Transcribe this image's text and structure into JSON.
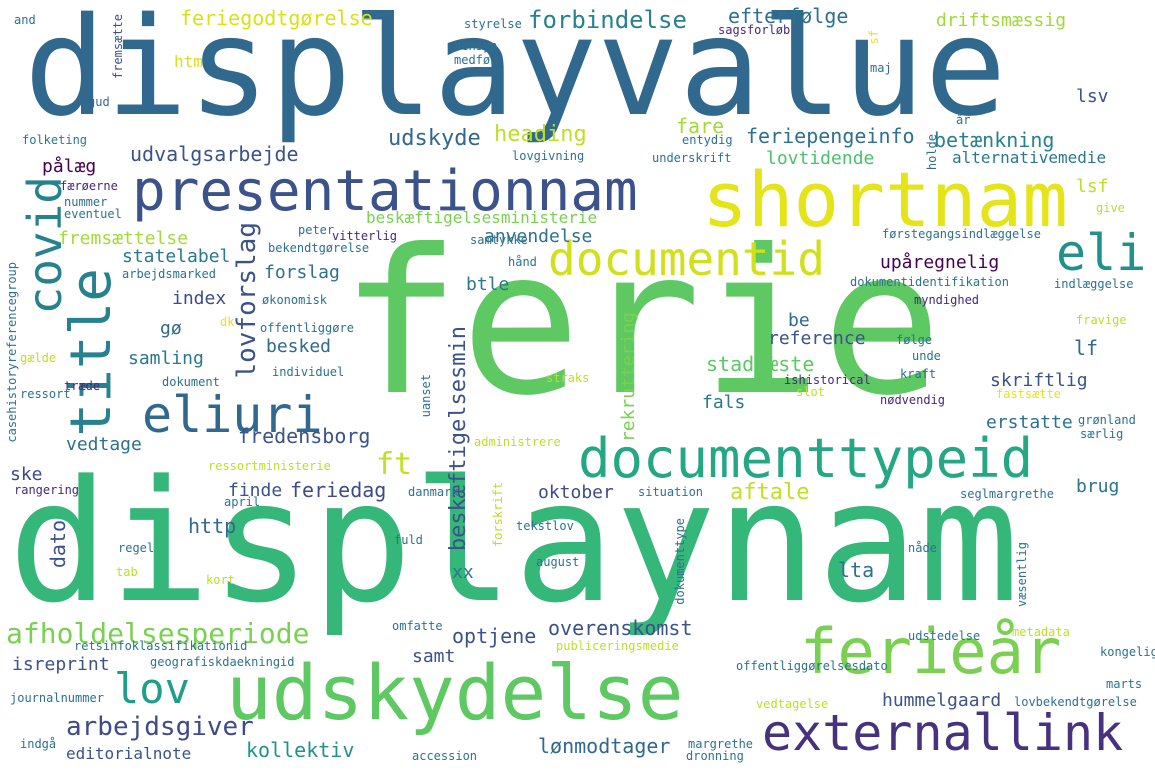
{
  "word_cloud": {
    "words": [
      {
        "text": "ferie",
        "color": "#5ec962"
      },
      {
        "text": "displaynam",
        "color": "#35b779"
      },
      {
        "text": "displayvalue",
        "color": "#31688e"
      },
      {
        "text": "presentationnam",
        "color": "#3b528b"
      },
      {
        "text": "shortnam",
        "color": "#e5e419"
      },
      {
        "text": "documentid",
        "color": "#d0e11c"
      },
      {
        "text": "documenttypeid",
        "color": "#26a784"
      },
      {
        "text": "udskydelse",
        "color": "#5ec962"
      },
      {
        "text": "externallink",
        "color": "#46327e"
      },
      {
        "text": "ferieår",
        "color": "#7ad151"
      },
      {
        "text": "eliuri",
        "color": "#31688e"
      },
      {
        "text": "title",
        "color": "#26828e"
      },
      {
        "text": "covid",
        "color": "#26828e"
      },
      {
        "text": "eli",
        "color": "#21918c"
      },
      {
        "text": "lov",
        "color": "#1f9e89"
      },
      {
        "text": "afholdelsesperiode",
        "color": "#7ad151"
      },
      {
        "text": "arbejdsgiver",
        "color": "#3e4a89"
      },
      {
        "text": "ft",
        "color": "#c2df23"
      },
      {
        "text": "lovforslag",
        "color": "#3b528b"
      },
      {
        "text": "forbindelse",
        "color": "#26828e"
      },
      {
        "text": "feriegodtgørelse",
        "color": "#d8e219"
      },
      {
        "text": "efterfølge",
        "color": "#2c728e"
      },
      {
        "text": "driftsmæssig",
        "color": "#a0da39"
      },
      {
        "text": "udvalgsarbejde",
        "color": "#3b528b"
      },
      {
        "text": "udskyde",
        "color": "#31688e"
      },
      {
        "text": "heading",
        "color": "#bddf26"
      },
      {
        "text": "fare",
        "color": "#a2da37"
      },
      {
        "text": "feriepengeinfo",
        "color": "#2c728e"
      },
      {
        "text": "betænkning",
        "color": "#26828e"
      },
      {
        "text": "lovtidende",
        "color": "#4ac16d"
      },
      {
        "text": "alternativemedie",
        "color": "#2a788e"
      },
      {
        "text": "beskæftigelsesministerie",
        "color": "#7ad151"
      },
      {
        "text": "fremsættelse",
        "color": "#a5db36"
      },
      {
        "text": "statelabel",
        "color": "#2a788e"
      },
      {
        "text": "anvendelse",
        "color": "#2c728e"
      },
      {
        "text": "forslag",
        "color": "#2c728e"
      },
      {
        "text": "upåregnelig",
        "color": "#440154"
      },
      {
        "text": "index",
        "color": "#3e4a89"
      },
      {
        "text": "btle",
        "color": "#2a788e"
      },
      {
        "text": "gø",
        "color": "#31688e"
      },
      {
        "text": "reference",
        "color": "#3b528b"
      },
      {
        "text": "samling",
        "color": "#2a788e"
      },
      {
        "text": "be",
        "color": "#31688e"
      },
      {
        "text": "besked",
        "color": "#31688e"
      },
      {
        "text": "stadfæste",
        "color": "#5ec962"
      },
      {
        "text": "lf",
        "color": "#31688e"
      },
      {
        "text": "skriftlig",
        "color": "#3b528b"
      },
      {
        "text": "fredensborg",
        "color": "#3b528b"
      },
      {
        "text": "vedtage",
        "color": "#2c728e"
      },
      {
        "text": "fals",
        "color": "#2a788e"
      },
      {
        "text": "erstatte",
        "color": "#2c728e"
      },
      {
        "text": "feriedag",
        "color": "#3e4a89"
      },
      {
        "text": "finde",
        "color": "#3b528b"
      },
      {
        "text": "ske",
        "color": "#3e4a89"
      },
      {
        "text": "aftale",
        "color": "#c2df23"
      },
      {
        "text": "oktober",
        "color": "#3e4a89"
      },
      {
        "text": "brug",
        "color": "#2c728e"
      },
      {
        "text": "http",
        "color": "#31688e"
      },
      {
        "text": "dato",
        "color": "#3b528b"
      },
      {
        "text": "xx",
        "color": "#2a788e"
      },
      {
        "text": "lta",
        "color": "#2c728e"
      },
      {
        "text": "overenskomst",
        "color": "#3b528b"
      },
      {
        "text": "optjene",
        "color": "#3b528b"
      },
      {
        "text": "samt",
        "color": "#3b528b"
      },
      {
        "text": "isreprint",
        "color": "#3b528b"
      },
      {
        "text": "editorialnote",
        "color": "#3b528b"
      },
      {
        "text": "kollektiv",
        "color": "#21918c"
      },
      {
        "text": "lønmodtager",
        "color": "#31688e"
      },
      {
        "text": "hummelgaard",
        "color": "#3b528b"
      },
      {
        "text": "beskæftigelsesmin",
        "color": "#3b528b"
      },
      {
        "text": "rekruttering",
        "color": "#7ad151"
      },
      {
        "text": "htm",
        "color": "#d8e219"
      },
      {
        "text": "lsv",
        "color": "#3b528b"
      },
      {
        "text": "lsf",
        "color": "#bddf26"
      },
      {
        "text": "pålæg",
        "color": "#440154"
      },
      {
        "text": "and",
        "color": "#2c728e"
      },
      {
        "text": "fremsætte",
        "color": "#3b528b"
      },
      {
        "text": "gud",
        "color": "#31688e"
      },
      {
        "text": "folketing",
        "color": "#2a788e"
      },
      {
        "text": "færøerne",
        "color": "#482878"
      },
      {
        "text": "nummer",
        "color": "#2c728e"
      },
      {
        "text": "eventuel",
        "color": "#2c728e"
      },
      {
        "text": "styrelse",
        "color": "#2c728e"
      },
      {
        "text": "hensyn",
        "color": "#2c728e"
      },
      {
        "text": "medfør",
        "color": "#2c728e"
      },
      {
        "text": "sagsforløb",
        "color": "#482878"
      },
      {
        "text": "maj",
        "color": "#2c728e"
      },
      {
        "text": "sf",
        "color": "#e5e419"
      },
      {
        "text": "år",
        "color": "#2c728e"
      },
      {
        "text": "entydig",
        "color": "#2c728e"
      },
      {
        "text": "underskrift",
        "color": "#2c728e"
      },
      {
        "text": "lovgivning",
        "color": "#2c728e"
      },
      {
        "text": "holde",
        "color": "#2c728e"
      },
      {
        "text": "give",
        "color": "#bddf26"
      },
      {
        "text": "peter",
        "color": "#2c728e"
      },
      {
        "text": "vitterlig",
        "color": "#482878"
      },
      {
        "text": "bekendtgørelse",
        "color": "#2c728e"
      },
      {
        "text": "samtykke",
        "color": "#2c728e"
      },
      {
        "text": "førstegangsindlæggelse",
        "color": "#2c728e"
      },
      {
        "text": "casehistoryreferencegroup",
        "color": "#2c728e"
      },
      {
        "text": "arbejdsmarked",
        "color": "#2c728e"
      },
      {
        "text": "hånd",
        "color": "#2c728e"
      },
      {
        "text": "dokumentidentifikation",
        "color": "#2c728e"
      },
      {
        "text": "indlæggelse",
        "color": "#2c728e"
      },
      {
        "text": "økonomisk",
        "color": "#2c728e"
      },
      {
        "text": "myndighed",
        "color": "#482878"
      },
      {
        "text": "dk",
        "color": "#e5e419"
      },
      {
        "text": "offentliggøre",
        "color": "#2c728e"
      },
      {
        "text": "fravige",
        "color": "#bddf26"
      },
      {
        "text": "gælde",
        "color": "#bddf26"
      },
      {
        "text": "følge",
        "color": "#2c728e"
      },
      {
        "text": "unde",
        "color": "#2c728e"
      },
      {
        "text": "individuel",
        "color": "#2c728e"
      },
      {
        "text": "uanset",
        "color": "#2c728e"
      },
      {
        "text": "ishistorical",
        "color": "#482878"
      },
      {
        "text": "kraft",
        "color": "#2c728e"
      },
      {
        "text": "dokument",
        "color": "#2c728e"
      },
      {
        "text": "træde",
        "color": "#482878"
      },
      {
        "text": "ressort",
        "color": "#2c728e"
      },
      {
        "text": "straks",
        "color": "#bddf26"
      },
      {
        "text": "slot",
        "color": "#bddf26"
      },
      {
        "text": "fastsætte",
        "color": "#e5e419"
      },
      {
        "text": "nødvendig",
        "color": "#482878"
      },
      {
        "text": "grønland",
        "color": "#2c728e"
      },
      {
        "text": "særlig",
        "color": "#2c728e"
      },
      {
        "text": "administrere",
        "color": "#bddf26"
      },
      {
        "text": "ressortministerie",
        "color": "#bddf26"
      },
      {
        "text": "rangering",
        "color": "#482878"
      },
      {
        "text": "april",
        "color": "#2c728e"
      },
      {
        "text": "danmark",
        "color": "#2c728e"
      },
      {
        "text": "forskrift",
        "color": "#bddf26"
      },
      {
        "text": "situation",
        "color": "#2c728e"
      },
      {
        "text": "seglmargrethe",
        "color": "#2c728e"
      },
      {
        "text": "tekstlov",
        "color": "#2c728e"
      },
      {
        "text": "regel",
        "color": "#2c728e"
      },
      {
        "text": "fuld",
        "color": "#2c728e"
      },
      {
        "text": "nåde",
        "color": "#2c728e"
      },
      {
        "text": "tab",
        "color": "#bddf26"
      },
      {
        "text": "august",
        "color": "#2c728e"
      },
      {
        "text": "dokumenttype",
        "color": "#2c728e"
      },
      {
        "text": "kort",
        "color": "#bddf26"
      },
      {
        "text": "væsentlig",
        "color": "#2c728e"
      },
      {
        "text": "omfatte",
        "color": "#2c728e"
      },
      {
        "text": "udstedelse",
        "color": "#2c728e"
      },
      {
        "text": "retsinfoklassifikationid",
        "color": "#2c728e"
      },
      {
        "text": "publiceringsmedie",
        "color": "#bddf26"
      },
      {
        "text": "metadata",
        "color": "#bddf26"
      },
      {
        "text": "kongelig",
        "color": "#2c728e"
      },
      {
        "text": "geografiskdaekningid",
        "color": "#2c728e"
      },
      {
        "text": "offentliggørelsesdato",
        "color": "#2c728e"
      },
      {
        "text": "marts",
        "color": "#2c728e"
      },
      {
        "text": "journalnummer",
        "color": "#2c728e"
      },
      {
        "text": "vedtagelse",
        "color": "#bddf26"
      },
      {
        "text": "lovbekendtgørelse",
        "color": "#2c728e"
      },
      {
        "text": "indgå",
        "color": "#2c728e"
      },
      {
        "text": "accession",
        "color": "#2c728e"
      },
      {
        "text": "margrethe",
        "color": "#2c728e"
      },
      {
        "text": "dronning",
        "color": "#2c728e"
      }
    ]
  }
}
